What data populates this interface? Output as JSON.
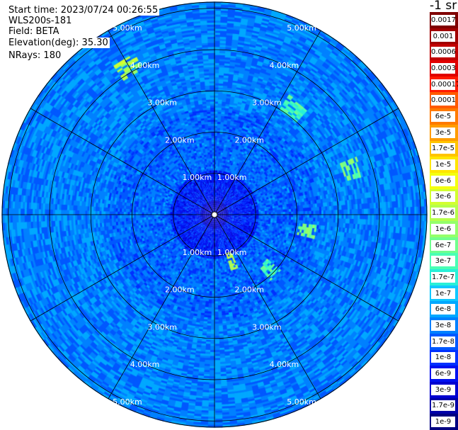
{
  "info": {
    "start_time": "Start time: 2023/07/24 00:26:55",
    "instrument": "WLS200s-181",
    "field": "Field: BETA",
    "elevation": "Elevation(deg): 35.30",
    "nrays": "NRays: 180"
  },
  "chart_data": {
    "type": "polar-ppi",
    "center_lat_lon": null,
    "rings_km": [
      1,
      2,
      3,
      4,
      5
    ],
    "ring_labels": [
      "1.00km",
      "2.00km",
      "3.00km",
      "4.00km",
      "5.00km"
    ],
    "max_range_km": 5.15,
    "spoke_angles_deg": [
      0,
      30,
      60,
      90,
      120,
      150,
      180,
      210,
      240,
      270,
      300,
      330
    ],
    "nrays": 180,
    "colorbar": {
      "title": "-1 sr",
      "ticks": [
        "0.0017",
        "0.001",
        "0.0006",
        "0.0003",
        "0.00017",
        "0.0001",
        "6e-5",
        "3e-5",
        "1.7e-5",
        "1e-5",
        "6e-6",
        "3e-6",
        "1.7e-6",
        "1e-6",
        "6e-7",
        "3e-7",
        "1.7e-7",
        "1e-7",
        "6e-8",
        "3e-8",
        "1.7e-8",
        "1e-8",
        "6e-9",
        "3e-9",
        "1.7e-9",
        "1e-9"
      ],
      "colors": [
        "#7f0000",
        "#a00000",
        "#c00000",
        "#e00000",
        "#ff1a00",
        "#ff5a00",
        "#ff7a00",
        "#ff9c00",
        "#ffc400",
        "#ffe600",
        "#f4ff10",
        "#d2ff30",
        "#b6ff4a",
        "#94ff6a",
        "#70ff8e",
        "#4affb4",
        "#28f0d8",
        "#10c8ff",
        "#00a8ff",
        "#0080ff",
        "#0058ff",
        "#0030ff",
        "#0010f0",
        "#0000d0",
        "#0000a8",
        "#000080"
      ]
    },
    "features": [
      {
        "range_km": 4.15,
        "azimuth_deg": 330,
        "level": "1.7e-6"
      },
      {
        "range_km": 3.5,
        "azimuth_deg": 72,
        "level": "6e-7"
      },
      {
        "range_km": 2.3,
        "azimuth_deg": 100,
        "level": "6e-7"
      },
      {
        "range_km": 1.2,
        "azimuth_deg": 160,
        "level": "1.7e-6"
      },
      {
        "range_km": 1.9,
        "azimuth_deg": 135,
        "level": "3e-7"
      },
      {
        "range_km": 3.2,
        "azimuth_deg": 37,
        "level": "3e-7"
      }
    ]
  }
}
